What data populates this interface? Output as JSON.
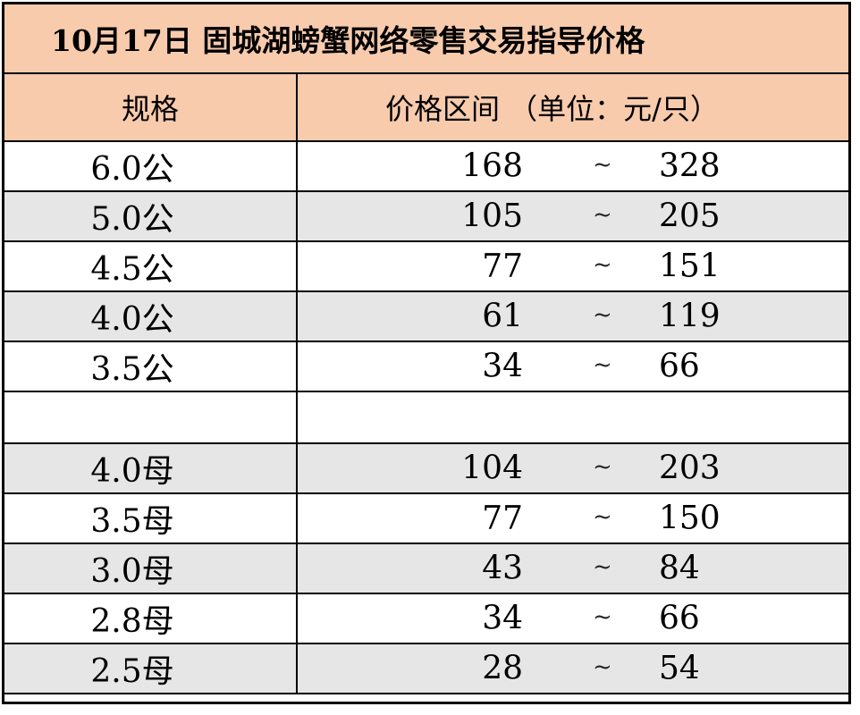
{
  "title": "10月17日 固城湖螃蟹网络零售交易指导价格",
  "header": {
    "spec": "规格",
    "price": "价格区间 （单位：元/只）"
  },
  "separator": "~",
  "rows": [
    {
      "spec": "6.0公",
      "low": "168",
      "high": "328",
      "shaded": false
    },
    {
      "spec": "5.0公",
      "low": "105",
      "high": "205",
      "shaded": true
    },
    {
      "spec": "4.5公",
      "low": "77",
      "high": "151",
      "shaded": false
    },
    {
      "spec": "4.0公",
      "low": "61",
      "high": "119",
      "shaded": true
    },
    {
      "spec": "3.5公",
      "low": "34",
      "high": "66",
      "shaded": false
    },
    {
      "blank": true
    },
    {
      "spec": "4.0母",
      "low": "104",
      "high": "203",
      "shaded": true
    },
    {
      "spec": "3.5母",
      "low": "77",
      "high": "150",
      "shaded": false
    },
    {
      "spec": "3.0母",
      "low": "43",
      "high": "84",
      "shaded": true
    },
    {
      "spec": "2.8母",
      "low": "34",
      "high": "66",
      "shaded": false
    },
    {
      "spec": "2.5母",
      "low": "28",
      "high": "54",
      "shaded": true
    }
  ],
  "colors": {
    "header_bg": "#f8cbad",
    "shade_bg": "#e7e6e6",
    "border": "#000000"
  }
}
